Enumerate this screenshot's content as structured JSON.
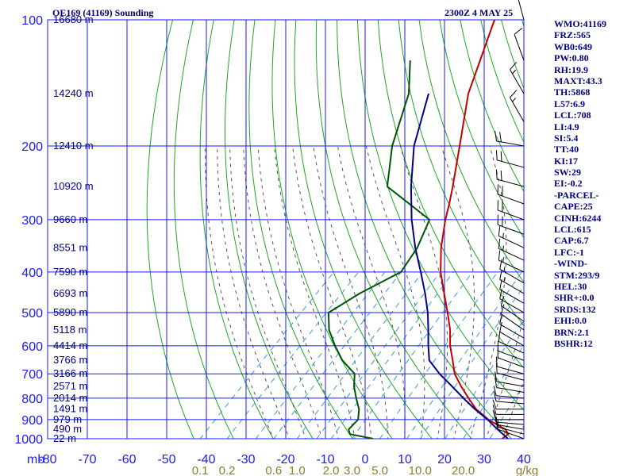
{
  "header": {
    "title_left": "OE169 (41169) Sounding",
    "title_right": "2300Z  4 MAY 25"
  },
  "indices": [
    "WMO:41169",
    "FRZ:565",
    "WB0:649",
    "PW:0.80",
    "RH:19.9",
    "MAXT:43.3",
    "TH:5868",
    "L57:6.9",
    "LCL:708",
    "LI:4.9",
    "SI:5.4",
    "TT:40",
    "KI:17",
    "SW:29",
    "EI:-0.2",
    "-PARCEL-",
    "CAPE:25",
    "CINH:6244",
    "LCL:615",
    "CAP:6.7",
    "LFC:-1",
    "-WIND-",
    "STM:293/9",
    "HEL:30",
    "SHR+:0.0",
    "SRDS:132",
    "EHI:0.0",
    "BRN:2.1",
    "BSHR:12"
  ],
  "colors": {
    "isobar": "#1a1aff",
    "isotherm": "#1a1aff",
    "dry_adiabat": "#1fa81f",
    "moist_adiabat": "#555555",
    "mixing_ratio": "#3a9bd9",
    "temperature": "#c00000",
    "dewpoint": "#005500",
    "parcel": "#00008b",
    "wind": "#000000"
  },
  "chart_data": {
    "type": "line",
    "title": "OE169 (41169) Sounding",
    "xlabel": "",
    "ylabel": "mb",
    "x_unit": "°C",
    "y_unit": "mb",
    "y_scale": "log",
    "x_axis_skewed": true,
    "xlim": [
      -80,
      40
    ],
    "ylim": [
      1000,
      100
    ],
    "pressure_ticks": [
      "100",
      "200",
      "300",
      "400",
      "500",
      "600",
      "700",
      "800",
      "900",
      "1000"
    ],
    "pressure_axis_label": "mb",
    "temperature_ticks": [
      "-80",
      "-70",
      "-60",
      "-50",
      "-40",
      "-30",
      "-20",
      "-10",
      "0",
      "10",
      "20",
      "30",
      "40"
    ],
    "mixing_ratio_ticks": [
      "0.1",
      "0.2",
      "0.6",
      "1.0",
      "2.0",
      "3.0",
      "5.0",
      "10.0",
      "20.0",
      "g/kg"
    ],
    "height_levels": [
      {
        "p": 100,
        "label": "16680 m"
      },
      {
        "p": 150,
        "label": "14240 m"
      },
      {
        "p": 200,
        "label": "12410 m"
      },
      {
        "p": 250,
        "label": "10920 m"
      },
      {
        "p": 300,
        "label": "9660 m"
      },
      {
        "p": 350,
        "label": "8551 m"
      },
      {
        "p": 400,
        "label": "7590 m"
      },
      {
        "p": 450,
        "label": "6693 m"
      },
      {
        "p": 500,
        "label": "5890 m"
      },
      {
        "p": 550,
        "label": "5118 m"
      },
      {
        "p": 600,
        "label": "4414 m"
      },
      {
        "p": 650,
        "label": "3766 m"
      },
      {
        "p": 700,
        "label": "3166 m"
      },
      {
        "p": 750,
        "label": "2571 m"
      },
      {
        "p": 800,
        "label": "2014 m"
      },
      {
        "p": 850,
        "label": "1491 m"
      },
      {
        "p": 900,
        "label": "979 m"
      },
      {
        "p": 950,
        "label": "490 m"
      },
      {
        "p": 1000,
        "label": "22 m"
      }
    ],
    "series": [
      {
        "key": "temperature",
        "points": [
          [
            1000,
            34.5
          ],
          [
            975,
            34.9
          ],
          [
            950,
            33.0
          ],
          [
            925,
            29.6
          ],
          [
            900,
            26.2
          ],
          [
            850,
            20.5
          ],
          [
            800,
            15.8
          ],
          [
            750,
            11.0
          ],
          [
            700,
            6.2
          ],
          [
            650,
            2.3
          ],
          [
            600,
            -2.0
          ],
          [
            550,
            -6.0
          ],
          [
            500,
            -11.0
          ],
          [
            450,
            -16.7
          ],
          [
            400,
            -23.0
          ],
          [
            350,
            -29.0
          ],
          [
            300,
            -35.0
          ],
          [
            275,
            -38.0
          ],
          [
            250,
            -41.5
          ],
          [
            200,
            -50.0
          ],
          [
            150,
            -61.0
          ],
          [
            100,
            -73.0
          ]
        ]
      },
      {
        "key": "dewpoint",
        "points": [
          [
            1000,
            2.0
          ],
          [
            975,
            -5.0
          ],
          [
            950,
            -6.5
          ],
          [
            900,
            -6.6
          ],
          [
            850,
            -9.0
          ],
          [
            800,
            -12.5
          ],
          [
            750,
            -16.0
          ],
          [
            700,
            -19.0
          ],
          [
            650,
            -25.5
          ],
          [
            600,
            -31.0
          ],
          [
            550,
            -36.5
          ],
          [
            500,
            -41.0
          ],
          [
            450,
            -38.0
          ],
          [
            400,
            -33.0
          ],
          [
            350,
            -35.0
          ],
          [
            300,
            -39.0
          ],
          [
            250,
            -58.0
          ],
          [
            200,
            -67.0
          ],
          [
            150,
            -76.0
          ],
          [
            125,
            -84.0
          ]
        ]
      },
      {
        "key": "parcel",
        "points": [
          [
            1000,
            36.0
          ],
          [
            950,
            31.0
          ],
          [
            900,
            26.0
          ],
          [
            850,
            20.2
          ],
          [
            800,
            14.5
          ],
          [
            750,
            8.7
          ],
          [
            700,
            2.4
          ],
          [
            650,
            -3.6
          ],
          [
            615,
            -6.3
          ],
          [
            600,
            -7.5
          ],
          [
            550,
            -11.5
          ],
          [
            500,
            -16.0
          ],
          [
            450,
            -21.5
          ],
          [
            400,
            -28.0
          ],
          [
            350,
            -35.5
          ],
          [
            300,
            -43.5
          ],
          [
            250,
            -52.0
          ],
          [
            200,
            -61.5
          ],
          [
            150,
            -71.0
          ]
        ]
      }
    ],
    "wind_barbs": [
      {
        "p": 1000,
        "dir": 290,
        "kt": 10
      },
      {
        "p": 975,
        "dir": 285,
        "kt": 10
      },
      {
        "p": 950,
        "dir": 280,
        "kt": 10
      },
      {
        "p": 925,
        "dir": 275,
        "kt": 10
      },
      {
        "p": 900,
        "dir": 270,
        "kt": 10
      },
      {
        "p": 875,
        "dir": 270,
        "kt": 10
      },
      {
        "p": 850,
        "dir": 270,
        "kt": 10
      },
      {
        "p": 825,
        "dir": 275,
        "kt": 10
      },
      {
        "p": 800,
        "dir": 275,
        "kt": 10
      },
      {
        "p": 775,
        "dir": 280,
        "kt": 10
      },
      {
        "p": 750,
        "dir": 280,
        "kt": 10
      },
      {
        "p": 725,
        "dir": 285,
        "kt": 10
      },
      {
        "p": 700,
        "dir": 285,
        "kt": 10
      },
      {
        "p": 675,
        "dir": 290,
        "kt": 10
      },
      {
        "p": 650,
        "dir": 290,
        "kt": 10
      },
      {
        "p": 625,
        "dir": 295,
        "kt": 10
      },
      {
        "p": 600,
        "dir": 300,
        "kt": 10
      },
      {
        "p": 575,
        "dir": 300,
        "kt": 10
      },
      {
        "p": 550,
        "dir": 305,
        "kt": 10
      },
      {
        "p": 525,
        "dir": 305,
        "kt": 10
      },
      {
        "p": 500,
        "dir": 300,
        "kt": 10
      },
      {
        "p": 475,
        "dir": 300,
        "kt": 10
      },
      {
        "p": 450,
        "dir": 300,
        "kt": 15
      },
      {
        "p": 425,
        "dir": 300,
        "kt": 15
      },
      {
        "p": 400,
        "dir": 295,
        "kt": 15
      },
      {
        "p": 375,
        "dir": 295,
        "kt": 15
      },
      {
        "p": 350,
        "dir": 295,
        "kt": 15
      },
      {
        "p": 325,
        "dir": 290,
        "kt": 20
      },
      {
        "p": 300,
        "dir": 290,
        "kt": 20
      },
      {
        "p": 275,
        "dir": 290,
        "kt": 20
      },
      {
        "p": 250,
        "dir": 285,
        "kt": 20
      },
      {
        "p": 225,
        "dir": 285,
        "kt": 20
      },
      {
        "p": 200,
        "dir": 280,
        "kt": 20
      },
      {
        "p": 175,
        "dir": 330,
        "kt": 15
      },
      {
        "p": 150,
        "dir": 330,
        "kt": 15
      },
      {
        "p": 125,
        "dir": 340,
        "kt": 10
      },
      {
        "p": 100,
        "dir": 345,
        "kt": 10
      }
    ]
  }
}
